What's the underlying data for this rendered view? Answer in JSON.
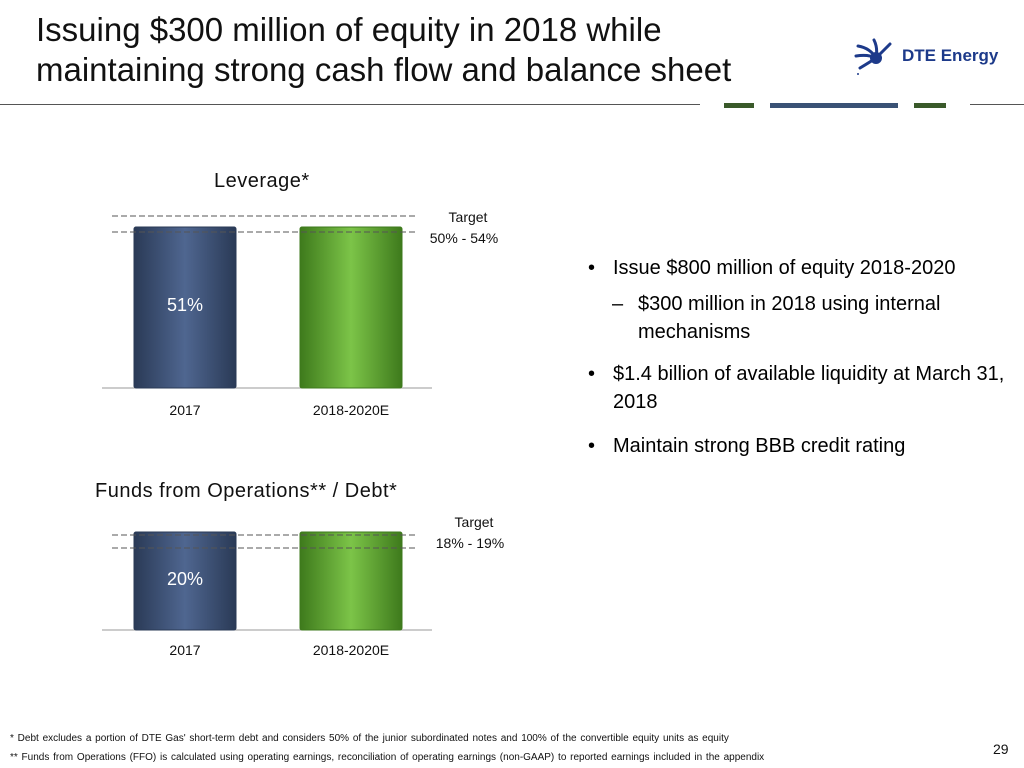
{
  "header": {
    "title_line1": "Issuing $300 million of equity in 2018 while",
    "title_line2": "maintaining strong cash flow and balance sheet",
    "logo_text": "DTE Energy",
    "colors": {
      "rule": "#555555",
      "accent_green": "#3a5a2a",
      "accent_blue": "#3a5275"
    }
  },
  "chart_data": [
    {
      "type": "bar",
      "title": "Leverage*",
      "categories": [
        "2017",
        "2018-2020E"
      ],
      "values": [
        51,
        null
      ],
      "data_labels": [
        "51%",
        ""
      ],
      "target_label": "Target",
      "target_range_label": "50% - 54%",
      "target_range": [
        50,
        54
      ],
      "colors": [
        "#3b4f72",
        "#5aa02c"
      ]
    },
    {
      "type": "bar",
      "title": "Funds from Operations** / Debt*",
      "categories": [
        "2017",
        "2018-2020E"
      ],
      "values": [
        20,
        null
      ],
      "data_labels": [
        "20%",
        ""
      ],
      "target_label": "Target",
      "target_range_label": "18% - 19%",
      "target_range": [
        18,
        19
      ],
      "colors": [
        "#3b4f72",
        "#5aa02c"
      ]
    }
  ],
  "bullets": [
    {
      "text": "Issue $800 million of equity 2018-2020",
      "sub": [
        "$300 million in 2018 using internal mechanisms"
      ]
    },
    {
      "text": "$1.4 billion of available liquidity at March 31, 2018",
      "sub": []
    },
    {
      "text": "Maintain strong BBB credit rating",
      "sub": []
    }
  ],
  "footnotes": {
    "note1": "* Debt excludes a portion of DTE Gas' short-term debt and considers 50% of the junior subordinated notes and 100% of the convertible equity units as equity",
    "note2": "** Funds from Operations (FFO) is calculated using operating earnings, reconciliation of operating earnings (non-GAAP) to reported earnings included in the appendix"
  },
  "page_number": "29"
}
